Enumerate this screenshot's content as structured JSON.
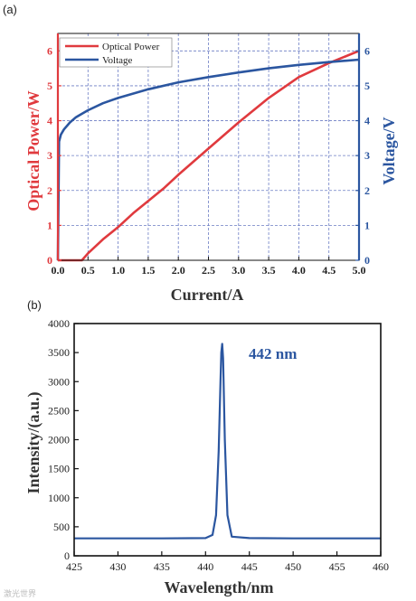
{
  "watermark": "激光世界",
  "colors": {
    "power": "#e03a3e",
    "voltage": "#2b56a0",
    "spectrum": "#2b56a0",
    "grid": "#6c7dc4"
  },
  "chart_data": [
    {
      "panel_label": "(a)",
      "type": "line",
      "xlabel": "Current/A",
      "ylabel_left": "Optical Power/W",
      "ylabel_right": "Voltage/V",
      "xlim": [
        0,
        5
      ],
      "ylim_left": [
        0,
        6.5
      ],
      "ylim_right": [
        0,
        6.5
      ],
      "x_ticks": [
        "0.0",
        "0.5",
        "1.0",
        "1.5",
        "2.0",
        "2.5",
        "3.0",
        "3.5",
        "4.0",
        "4.5",
        "5.0"
      ],
      "y_left_ticks": [
        "0",
        "1",
        "2",
        "3",
        "4",
        "5",
        "6"
      ],
      "y_right_ticks": [
        "0",
        "1",
        "2",
        "3",
        "4",
        "5",
        "6"
      ],
      "grid": true,
      "legend": "top-left",
      "series": [
        {
          "name": "Optical Power",
          "axis": "left",
          "x": [
            0,
            0.4,
            0.5,
            0.75,
            1.0,
            1.25,
            1.5,
            1.75,
            2.0,
            2.5,
            3.0,
            3.5,
            4.0,
            4.5,
            5.0
          ],
          "y": [
            0,
            0,
            0.2,
            0.6,
            0.95,
            1.35,
            1.7,
            2.05,
            2.45,
            3.2,
            3.95,
            4.65,
            5.25,
            5.65,
            6.0
          ]
        },
        {
          "name": "Voltage",
          "axis": "right",
          "x": [
            0,
            0.02,
            0.05,
            0.1,
            0.2,
            0.3,
            0.5,
            0.75,
            1.0,
            1.5,
            2.0,
            2.5,
            3.0,
            3.5,
            4.0,
            4.5,
            5.0
          ],
          "y": [
            0,
            3.4,
            3.6,
            3.75,
            3.95,
            4.1,
            4.3,
            4.5,
            4.65,
            4.9,
            5.1,
            5.25,
            5.38,
            5.5,
            5.6,
            5.68,
            5.75
          ]
        }
      ]
    },
    {
      "panel_label": "(b)",
      "type": "line",
      "xlabel": "Wavelength/nm",
      "ylabel": "Intensity/(a.u.)",
      "xlim": [
        425,
        460
      ],
      "ylim": [
        0,
        4000
      ],
      "x_ticks": [
        "425",
        "430",
        "435",
        "440",
        "445",
        "450",
        "455",
        "460"
      ],
      "y_ticks": [
        "0",
        "500",
        "1000",
        "1500",
        "2000",
        "2500",
        "3000",
        "3500",
        "4000"
      ],
      "grid": false,
      "annotation": "442 nm",
      "series": [
        {
          "x": [
            425,
            430,
            435,
            440,
            440.8,
            441.2,
            441.5,
            441.7,
            441.8,
            441.9,
            442.0,
            442.2,
            442.5,
            443,
            445,
            450,
            455,
            460
          ],
          "y": [
            300,
            300,
            300,
            305,
            360,
            700,
            1800,
            3000,
            3500,
            3650,
            3400,
            2000,
            700,
            330,
            305,
            300,
            300,
            300
          ]
        }
      ]
    }
  ]
}
